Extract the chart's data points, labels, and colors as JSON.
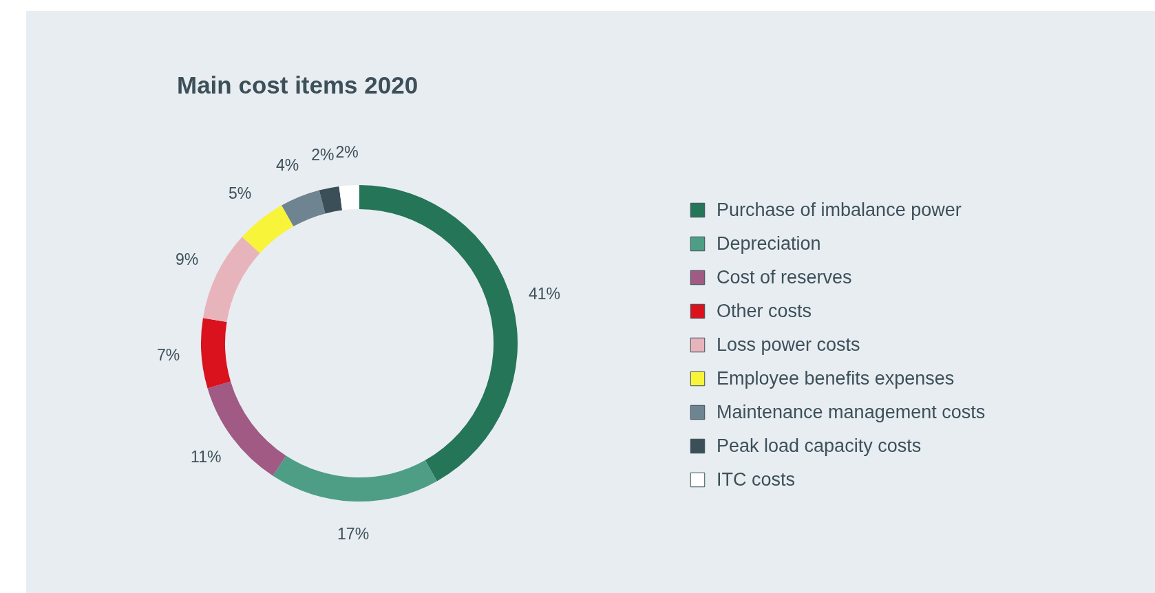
{
  "chart_data": {
    "type": "donut",
    "title": "Main cost items 2020",
    "categories": [
      "Purchase of imbalance power",
      "Depreciation",
      "Cost of reserves",
      "Other costs",
      "Loss power costs",
      "Employee benefits expenses",
      "Maintenance management costs",
      "Peak load capacity costs",
      "ITC costs"
    ],
    "values": [
      41,
      17,
      11,
      7,
      9,
      5,
      4,
      2,
      2
    ],
    "value_labels": [
      "41%",
      "17%",
      "11%",
      "7%",
      "9%",
      "5%",
      "4%",
      "2%",
      "2%"
    ],
    "colors": [
      "#257558",
      "#4d9e85",
      "#a05a84",
      "#d9121e",
      "#e8b4bb",
      "#f8f43a",
      "#6f8491",
      "#3b4f58",
      "#ffffff"
    ],
    "legend": "right"
  }
}
